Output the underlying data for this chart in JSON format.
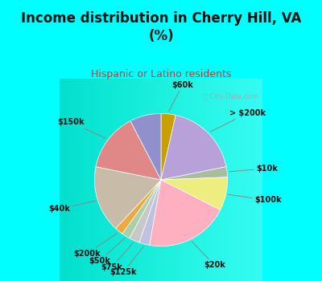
{
  "title": "Income distribution in Cherry Hill, VA\n(%)",
  "subtitle": "Hispanic or Latino residents",
  "slices": [
    {
      "label": "$60k",
      "value": 3.5,
      "color": "#c8a000"
    },
    {
      "label": "> $200k",
      "value": 18.0,
      "color": "#b8a0d8"
    },
    {
      "label": "$10k",
      "value": 2.5,
      "color": "#aabca0"
    },
    {
      "label": "$100k",
      "value": 8.0,
      "color": "#eeee80"
    },
    {
      "label": "$20k",
      "value": 20.0,
      "color": "#ffb0c0"
    },
    {
      "label": "$125k",
      "value": 2.5,
      "color": "#c0c0e0"
    },
    {
      "label": "$75k",
      "value": 2.5,
      "color": "#c8c8c8"
    },
    {
      "label": "$50k",
      "value": 2.0,
      "color": "#aad0aa"
    },
    {
      "label": "$200k",
      "value": 2.0,
      "color": "#f0a840"
    },
    {
      "label": "$40k",
      "value": 16.0,
      "color": "#c8bca8"
    },
    {
      "label": "$150k",
      "value": 14.0,
      "color": "#e08888"
    },
    {
      "label": "",
      "value": 7.5,
      "color": "#9090cc"
    }
  ],
  "bg_top": "#00ffff",
  "bg_chart_color": "#e8f5ee",
  "title_color": "#111111",
  "subtitle_color": "#b84030",
  "figsize": [
    4.0,
    3.5
  ],
  "dpi": 100,
  "title_fontsize": 12,
  "subtitle_fontsize": 9,
  "label_fontsize": 7
}
